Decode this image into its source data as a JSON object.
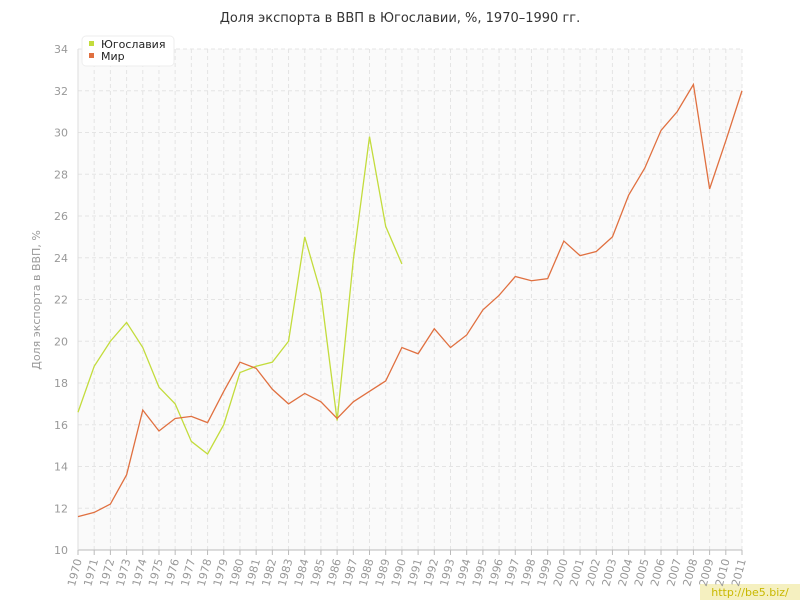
{
  "chart_data": {
    "type": "line",
    "title": "Доля экспорта в ВВП в Югославии, %, 1970–1990 гг.",
    "y_label": "Доля экспорта в ВВП, %",
    "watermark": "http://be5.biz/",
    "x": [
      1970,
      1971,
      1972,
      1973,
      1974,
      1975,
      1976,
      1977,
      1978,
      1979,
      1980,
      1981,
      1982,
      1983,
      1984,
      1985,
      1986,
      1987,
      1988,
      1989,
      1990,
      1991,
      1992,
      1993,
      1994,
      1995,
      1996,
      1997,
      1998,
      1999,
      2000,
      2001,
      2002,
      2003,
      2004,
      2005,
      2006,
      2007,
      2008,
      2009,
      2010,
      2011
    ],
    "ylim": [
      10,
      34
    ],
    "yticks": [
      10,
      12,
      14,
      16,
      18,
      20,
      22,
      24,
      26,
      28,
      30,
      32,
      34
    ],
    "grid": true,
    "legend": "top-left",
    "series": [
      {
        "name": "Югославия",
        "color": "#c3dc3c",
        "values": [
          16.6,
          18.8,
          20.0,
          20.9,
          19.7,
          17.8,
          17.0,
          15.2,
          14.6,
          16.0,
          18.5,
          18.8,
          19.0,
          20.0,
          25.0,
          22.3,
          16.2,
          23.9,
          29.8,
          25.5,
          23.7,
          null,
          null,
          null,
          null,
          null,
          null,
          null,
          null,
          null,
          null,
          null,
          null,
          null,
          null,
          null,
          null,
          null,
          null,
          null,
          null,
          null
        ]
      },
      {
        "name": "Мир",
        "color": "#e07040",
        "values": [
          11.6,
          11.8,
          12.2,
          13.6,
          16.7,
          15.7,
          16.3,
          16.4,
          16.1,
          17.6,
          19.0,
          18.7,
          17.7,
          17.0,
          17.5,
          17.1,
          16.3,
          17.1,
          17.6,
          18.1,
          19.7,
          19.4,
          20.6,
          19.7,
          20.3,
          21.5,
          22.2,
          23.1,
          22.9,
          23.0,
          24.8,
          24.1,
          24.3,
          25.0,
          27.0,
          28.3,
          30.1,
          31.0,
          32.3,
          27.3,
          29.6,
          32.0
        ]
      }
    ]
  }
}
